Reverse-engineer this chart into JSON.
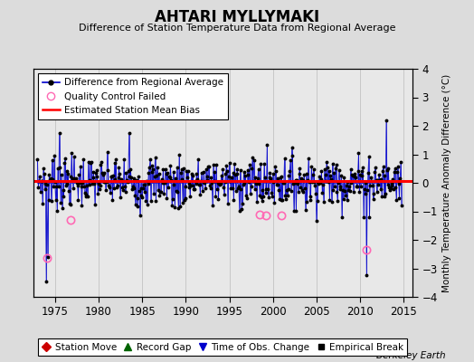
{
  "title": "AHTARI MYLLYMAKI",
  "subtitle": "Difference of Station Temperature Data from Regional Average",
  "ylabel": "Monthly Temperature Anomaly Difference (°C)",
  "xlim": [
    1972.5,
    2016.0
  ],
  "ylim": [
    -4,
    4
  ],
  "yticks": [
    -4,
    -3,
    -2,
    -1,
    0,
    1,
    2,
    3,
    4
  ],
  "xticks": [
    1975,
    1980,
    1985,
    1990,
    1995,
    2000,
    2005,
    2010,
    2015
  ],
  "bias_line_y": 0.05,
  "background_color": "#dcdcdc",
  "plot_bg_color": "#e8e8e8",
  "line_color": "#0000cc",
  "dot_color": "#000000",
  "bias_color": "#ff0000",
  "qc_color": "#ff69b4",
  "station_move_color": "#cc0000",
  "record_gap_color": "#006400",
  "tobs_color": "#0000cc",
  "empirical_color": "#000000",
  "watermark": "Berkeley Earth",
  "qc_fail_data": [
    [
      1974.08,
      -2.65
    ],
    [
      1976.75,
      -1.3
    ],
    [
      1998.5,
      -1.1
    ],
    [
      1999.25,
      -1.15
    ],
    [
      2001.0,
      -1.15
    ],
    [
      2010.75,
      -2.35
    ]
  ],
  "spikes": {
    "1974.0": -3.5,
    "1975.5": 1.7,
    "1983.5": 1.7,
    "1984.75": -1.2,
    "1988.75": -0.9,
    "1995.5": -0.65,
    "1998.5": -0.5,
    "1999.5": -0.55,
    "2010.75": -3.3,
    "2013.0": 2.15
  },
  "seed": 7
}
